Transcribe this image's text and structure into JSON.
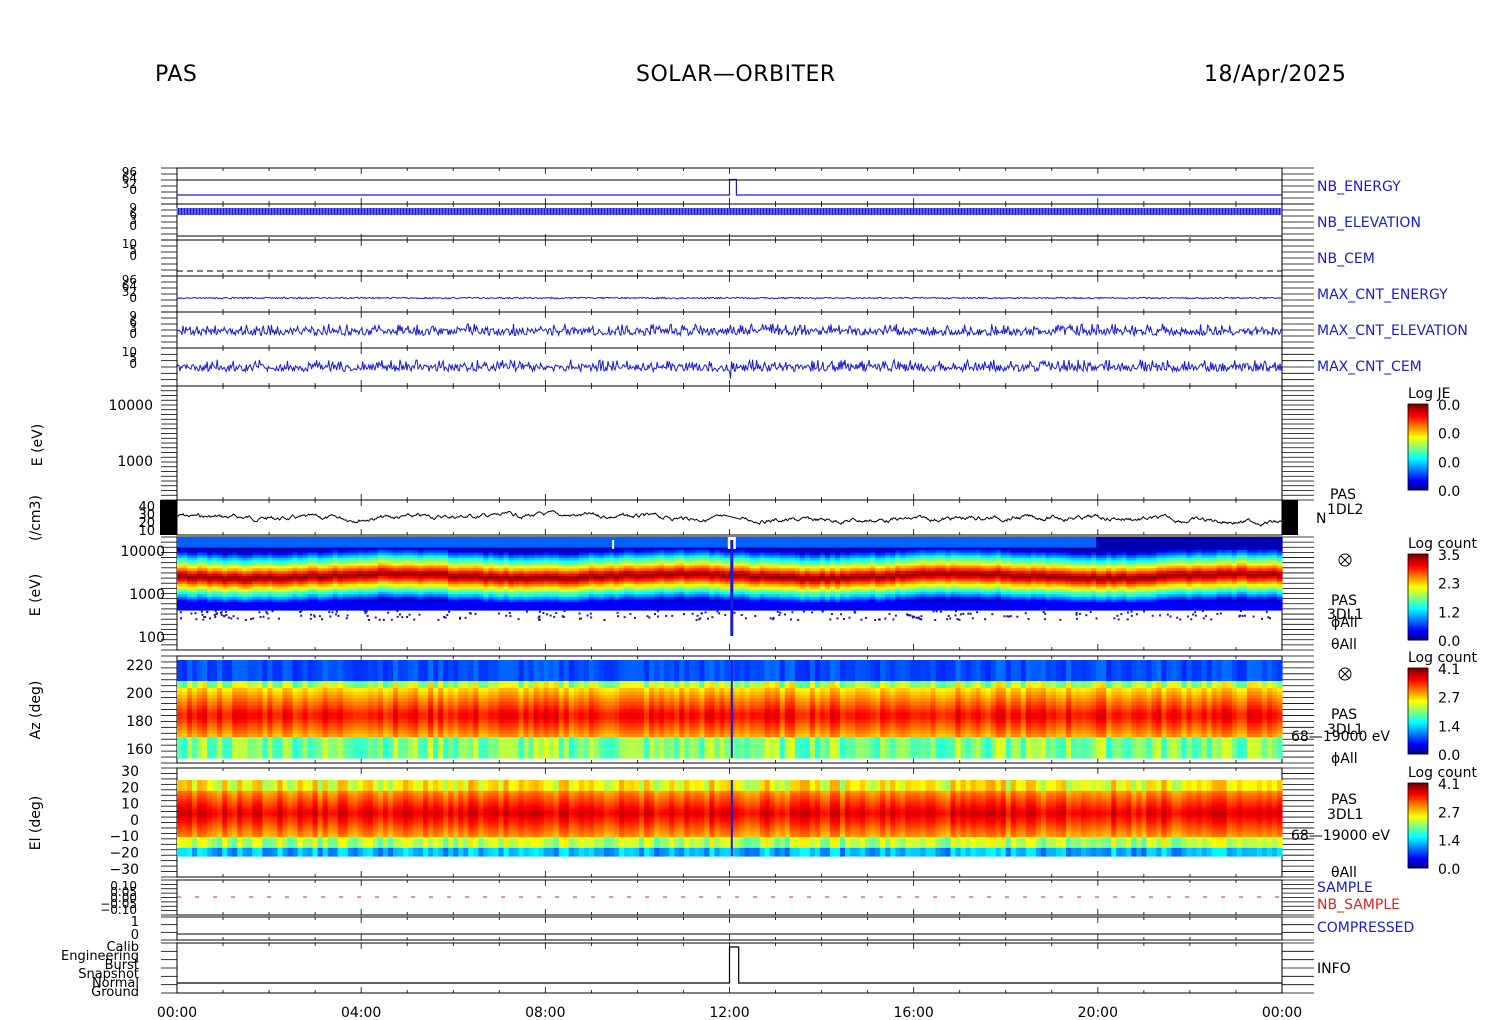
{
  "header": {
    "instrument": "PAS",
    "mission": "SOLAR—ORBITER",
    "date": "18/Apr/2025"
  },
  "colors": {
    "trace": "#1a1adc",
    "nb_sample": "#dd2222",
    "axis": "#000000"
  },
  "chart_data": {
    "type": "heatmap",
    "x_axis": {
      "ticks": [
        "00:00",
        "04:00",
        "08:00",
        "12:00",
        "16:00",
        "20:00",
        "00:00"
      ],
      "range": [
        0,
        24
      ],
      "unit": "hours"
    },
    "panels": [
      {
        "id": "nb_energy",
        "type": "line",
        "right_label": "NB_ENERGY",
        "left_ticks": [
          "96",
          "64",
          "32",
          "0"
        ],
        "x": [
          0,
          12.0,
          12.0,
          12.15,
          12.15,
          24
        ],
        "y": [
          25,
          25,
          68,
          68,
          25,
          25
        ],
        "ylim": [
          0,
          100
        ]
      },
      {
        "id": "nb_elevation",
        "type": "line",
        "right_label": "NB_ELEVATION",
        "left_ticks": [
          "9",
          "6",
          "3",
          "0"
        ],
        "y_level": 8.5,
        "ylim": [
          0,
          10
        ]
      },
      {
        "id": "nb_cem",
        "type": "line",
        "right_label": "NB_CEM",
        "left_ticks": [
          "10",
          "5",
          "0"
        ],
        "y_level": 0.5,
        "style": "dashed",
        "ylim": [
          0,
          10
        ]
      },
      {
        "id": "max_cnt_energy",
        "type": "line",
        "right_label": "MAX_CNT_ENERGY",
        "left_ticks": [
          "96",
          "64",
          "32",
          "0"
        ],
        "y_level": 48,
        "ylim": [
          0,
          100
        ]
      },
      {
        "id": "max_cnt_elevation",
        "type": "line",
        "right_label": "MAX_CNT_ELEVATION",
        "left_ticks": [
          "9",
          "6",
          "3",
          "0"
        ],
        "y_level": 4,
        "ylim": [
          0,
          10
        ]
      },
      {
        "id": "max_cnt_cem",
        "type": "line",
        "right_label": "MAX_CNT_CEM",
        "left_ticks": [
          "10",
          "5",
          "0"
        ],
        "y_level": 4,
        "ylim": [
          0,
          10
        ]
      },
      {
        "id": "je_spectrogram",
        "type": "heatmap",
        "ylabel": "E (eV)",
        "left_ticks": [
          "10000",
          "1000"
        ],
        "colorbar": {
          "title": "Log JE",
          "ticks": [
            "0.0",
            "0.0",
            "0.0",
            "0.0"
          ]
        }
      },
      {
        "id": "density",
        "type": "line",
        "ylabel": "(/cm3)",
        "left_ticks": [
          "40",
          "30",
          "20",
          "10"
        ],
        "right_labels": [
          "PAS",
          "1DL2",
          "N"
        ],
        "ylim": [
          10,
          40
        ],
        "mean": 24
      },
      {
        "id": "energy_spectrogram",
        "type": "heatmap",
        "ylabel": "E (eV)",
        "left_ticks": [
          "10000",
          "1000",
          "100"
        ],
        "right_labels": [
          "PAS",
          "3DL1",
          "ϕAll",
          "θAll"
        ],
        "colorbar": {
          "title": "Log count",
          "ticks": [
            "3.5",
            "2.3",
            "1.2",
            "0.0"
          ]
        },
        "peak_energy_eV": 2000
      },
      {
        "id": "azimuth_spectrogram",
        "type": "heatmap",
        "ylabel": "Az (deg)",
        "left_ticks": [
          "220",
          "200",
          "180",
          "160"
        ],
        "right_labels": [
          "PAS",
          "3DL1",
          "68—19000 eV",
          "ϕAll"
        ],
        "colorbar": {
          "title": "Log count",
          "ticks": [
            "4.1",
            "2.7",
            "1.4",
            "0.0"
          ]
        },
        "peak_deg": 182
      },
      {
        "id": "elevation_spectrogram",
        "type": "heatmap",
        "ylabel": "El (deg)",
        "left_ticks": [
          "30",
          "20",
          "10",
          "0",
          "−10",
          "−20",
          "−30"
        ],
        "right_labels": [
          "PAS",
          "3DL1",
          "68—19000 eV",
          "θAll"
        ],
        "colorbar": {
          "title": "Log count",
          "ticks": [
            "4.1",
            "2.7",
            "1.4",
            "0.0"
          ]
        },
        "peak_deg": 5
      },
      {
        "id": "sample",
        "type": "line",
        "right_label": "SAMPLE",
        "right_label_2": "NB_SAMPLE",
        "left_ticks": [
          "0.10",
          "0.05",
          "0.00",
          "−0.05",
          "−0.10"
        ],
        "y_level": 0.0
      },
      {
        "id": "compressed",
        "type": "line",
        "right_label": "COMPRESSED",
        "left_ticks": [
          "1",
          "0"
        ],
        "y_level": 0
      },
      {
        "id": "info",
        "type": "step",
        "right_label": "INFO",
        "left_ticks": [
          "Calib",
          "Engineering",
          "Burst",
          "Snapshot",
          "Normal",
          "Ground"
        ],
        "x": [
          0,
          12.0,
          12.0,
          12.2,
          12.2,
          24
        ],
        "y": [
          "Normal",
          "Normal",
          "Calib",
          "Calib",
          "Normal",
          "Normal"
        ]
      }
    ]
  }
}
